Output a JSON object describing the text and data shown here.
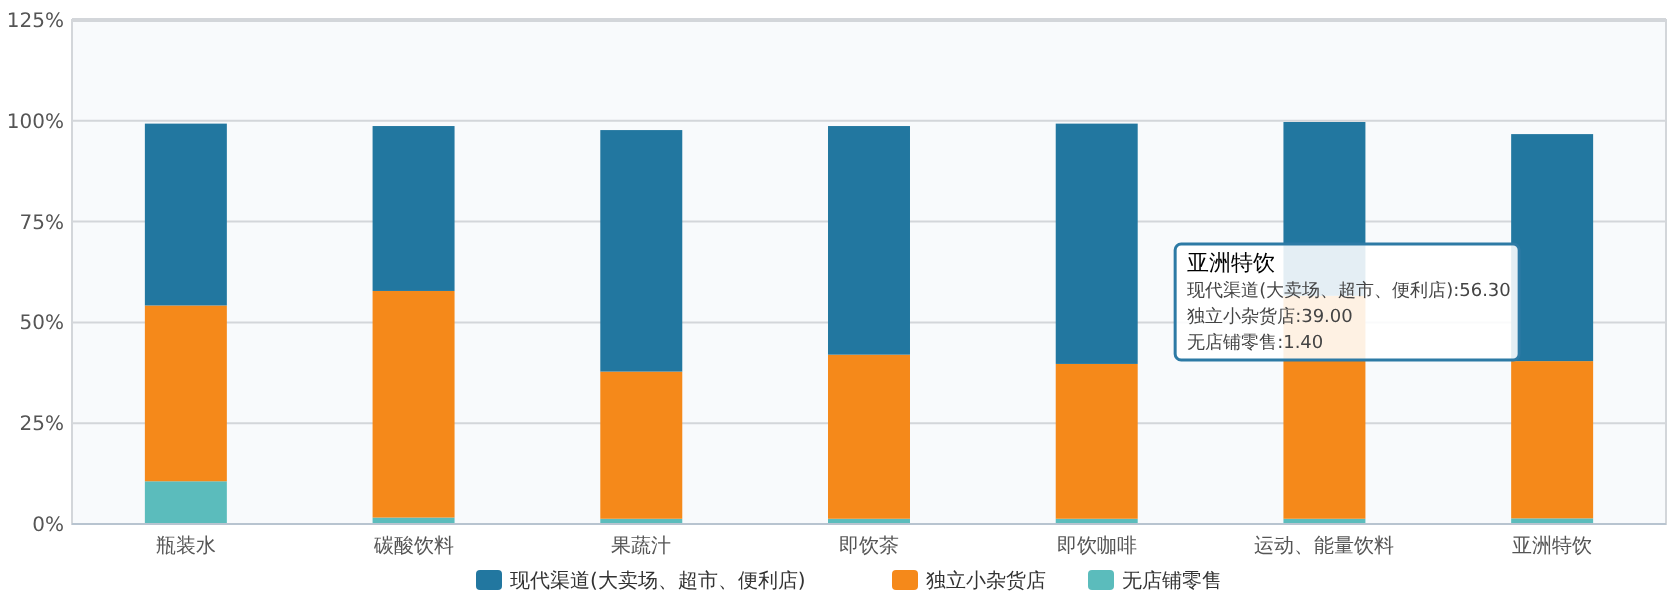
{
  "chart_data": {
    "type": "bar",
    "stacked": true,
    "categories": [
      "瓶装水",
      "碳酸饮料",
      "果蔬汁",
      "即饮茶",
      "即饮咖啡",
      "运动、能量饮料",
      "亚洲特饮"
    ],
    "series": [
      {
        "name": "无店铺零售",
        "color": "#5bbcbc",
        "values": [
          10.6,
          1.6,
          1.3,
          1.3,
          1.3,
          1.3,
          1.4
        ]
      },
      {
        "name": "独立小杂货店",
        "color": "#f5891a",
        "values": [
          43.6,
          56.2,
          36.5,
          40.7,
          38.4,
          55.3,
          39.0
        ]
      },
      {
        "name": "现代渠道(大卖场、超市、便利店)",
        "color": "#2277a0",
        "values": [
          45.1,
          40.9,
          59.9,
          56.7,
          59.6,
          43.1,
          56.3
        ]
      }
    ],
    "ylim": [
      0,
      125
    ],
    "yticks": [
      {
        "value": 0,
        "label": "0%"
      },
      {
        "value": 25,
        "label": "25%"
      },
      {
        "value": 50,
        "label": "50%"
      },
      {
        "value": 75,
        "label": "75%"
      },
      {
        "value": 100,
        "label": "100%"
      },
      {
        "value": 125,
        "label": "125%"
      }
    ],
    "grid": "y",
    "legend": "bottom",
    "annotations": [
      "亚洲特饮",
      "现代渠道(大卖场、超市、便利店):56.30",
      "独立小杂货店:39.00",
      "无店铺零售:1.40"
    ]
  }
}
